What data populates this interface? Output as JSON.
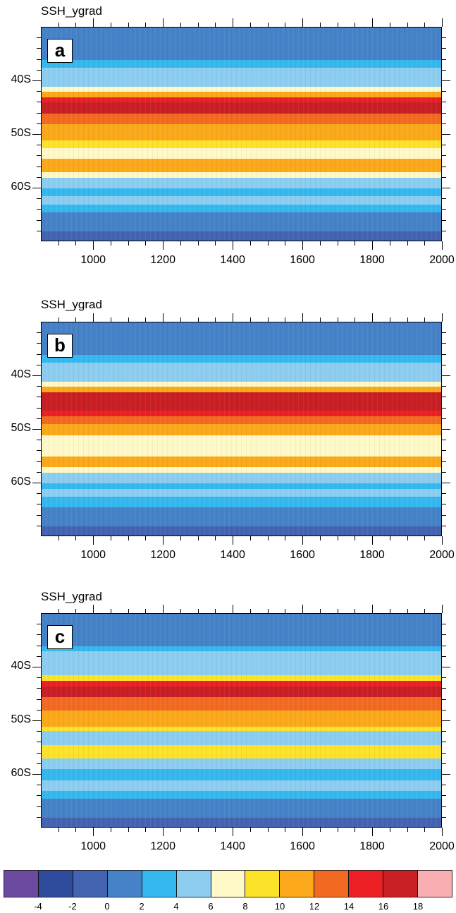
{
  "chart_data": [
    {
      "type": "heatmap",
      "panel_label": "a",
      "title": "SSH_ygrad",
      "xlabel": "",
      "ylabel": "",
      "xlim": [
        850,
        2000
      ],
      "ylim": [
        "30S",
        "70S"
      ],
      "x_ticks": [
        1000,
        1200,
        1400,
        1600,
        1800,
        2000
      ],
      "y_ticks": [
        "40S",
        "50S",
        "60S"
      ],
      "bands_by_latitude": [
        {
          "lat_from": 30,
          "lat_to": 36,
          "value": 0
        },
        {
          "lat_from": 36,
          "lat_to": 37.5,
          "value": 2
        },
        {
          "lat_from": 37.5,
          "lat_to": 41,
          "value": 4
        },
        {
          "lat_from": 41,
          "lat_to": 42,
          "value": 6
        },
        {
          "lat_from": 42,
          "lat_to": 43,
          "value": 10
        },
        {
          "lat_from": 43,
          "lat_to": 44,
          "value": 14
        },
        {
          "lat_from": 44,
          "lat_to": 46,
          "value": 16
        },
        {
          "lat_from": 46,
          "lat_to": 48,
          "value": 12
        },
        {
          "lat_from": 48,
          "lat_to": 51,
          "value": 10
        },
        {
          "lat_from": 51,
          "lat_to": 52.5,
          "value": 8
        },
        {
          "lat_from": 52.5,
          "lat_to": 54.5,
          "value": 6
        },
        {
          "lat_from": 54.5,
          "lat_to": 57,
          "value": 10
        },
        {
          "lat_from": 57,
          "lat_to": 58,
          "value": 6
        },
        {
          "lat_from": 58,
          "lat_to": 60,
          "value": 4
        },
        {
          "lat_from": 60,
          "lat_to": 61.5,
          "value": 2
        },
        {
          "lat_from": 61.5,
          "lat_to": 63,
          "value": 4
        },
        {
          "lat_from": 63,
          "lat_to": 64.5,
          "value": 2
        },
        {
          "lat_from": 64.5,
          "lat_to": 68,
          "value": 0
        },
        {
          "lat_from": 68,
          "lat_to": 70,
          "value": -2
        }
      ]
    },
    {
      "type": "heatmap",
      "panel_label": "b",
      "title": "SSH_ygrad",
      "xlabel": "",
      "ylabel": "",
      "xlim": [
        850,
        2000
      ],
      "ylim": [
        "30S",
        "70S"
      ],
      "x_ticks": [
        1000,
        1200,
        1400,
        1600,
        1800,
        2000
      ],
      "y_ticks": [
        "40S",
        "50S",
        "60S"
      ],
      "bands_by_latitude": [
        {
          "lat_from": 30,
          "lat_to": 36,
          "value": 0
        },
        {
          "lat_from": 36,
          "lat_to": 37.5,
          "value": 2
        },
        {
          "lat_from": 37.5,
          "lat_to": 41,
          "value": 4
        },
        {
          "lat_from": 41,
          "lat_to": 42,
          "value": 6
        },
        {
          "lat_from": 42,
          "lat_to": 43,
          "value": 10
        },
        {
          "lat_from": 43,
          "lat_to": 46.5,
          "value": 16
        },
        {
          "lat_from": 46.5,
          "lat_to": 47.5,
          "value": 14
        },
        {
          "lat_from": 47.5,
          "lat_to": 49,
          "value": 12
        },
        {
          "lat_from": 49,
          "lat_to": 51,
          "value": 10
        },
        {
          "lat_from": 51,
          "lat_to": 55,
          "value": 6
        },
        {
          "lat_from": 55,
          "lat_to": 57,
          "value": 10
        },
        {
          "lat_from": 57,
          "lat_to": 58,
          "value": 6
        },
        {
          "lat_from": 58,
          "lat_to": 60,
          "value": 4
        },
        {
          "lat_from": 60,
          "lat_to": 61,
          "value": 2
        },
        {
          "lat_from": 61,
          "lat_to": 62.5,
          "value": 4
        },
        {
          "lat_from": 62.5,
          "lat_to": 64.5,
          "value": 2
        },
        {
          "lat_from": 64.5,
          "lat_to": 68,
          "value": 0
        },
        {
          "lat_from": 68,
          "lat_to": 70,
          "value": -2
        }
      ]
    },
    {
      "type": "heatmap",
      "panel_label": "c",
      "title": "SSH_ygrad",
      "xlabel": "",
      "ylabel": "",
      "xlim": [
        850,
        2000
      ],
      "ylim": [
        "30S",
        "70S"
      ],
      "x_ticks": [
        1000,
        1200,
        1400,
        1600,
        1800,
        2000
      ],
      "y_ticks": [
        "40S",
        "50S",
        "60S"
      ],
      "bands_by_latitude": [
        {
          "lat_from": 30,
          "lat_to": 36,
          "value": 0
        },
        {
          "lat_from": 36,
          "lat_to": 37,
          "value": 2
        },
        {
          "lat_from": 37,
          "lat_to": 41.5,
          "value": 4
        },
        {
          "lat_from": 41.5,
          "lat_to": 42.5,
          "value": 8
        },
        {
          "lat_from": 42.5,
          "lat_to": 43.5,
          "value": 14
        },
        {
          "lat_from": 43.5,
          "lat_to": 45.5,
          "value": 16
        },
        {
          "lat_from": 45.5,
          "lat_to": 48,
          "value": 12
        },
        {
          "lat_from": 48,
          "lat_to": 51,
          "value": 10
        },
        {
          "lat_from": 51,
          "lat_to": 51.8,
          "value": 8
        },
        {
          "lat_from": 51.8,
          "lat_to": 54.5,
          "value": 4
        },
        {
          "lat_from": 54.5,
          "lat_to": 57,
          "value": 8
        },
        {
          "lat_from": 57,
          "lat_to": 59,
          "value": 4
        },
        {
          "lat_from": 59,
          "lat_to": 61,
          "value": 2
        },
        {
          "lat_from": 61,
          "lat_to": 63,
          "value": 4
        },
        {
          "lat_from": 63,
          "lat_to": 64.5,
          "value": 2
        },
        {
          "lat_from": 64.5,
          "lat_to": 68,
          "value": 0
        },
        {
          "lat_from": 68,
          "lat_to": 70,
          "value": -2
        }
      ]
    }
  ],
  "panels": [
    {
      "title": "SSH_ygrad",
      "label": "a"
    },
    {
      "title": "SSH_ygrad",
      "label": "b"
    },
    {
      "title": "SSH_ygrad",
      "label": "c"
    }
  ],
  "axes": {
    "y_labels": [
      "40S",
      "50S",
      "60S"
    ],
    "x_labels": [
      "1000",
      "1200",
      "1400",
      "1600",
      "1800",
      "2000"
    ]
  },
  "colorbar": {
    "colors": [
      "#6b4aa0",
      "#2f4b9e",
      "#4463b0",
      "#4682c8",
      "#35b8ee",
      "#8ccdf0",
      "#fff9c8",
      "#fde22a",
      "#fba91a",
      "#f26a22",
      "#ec2024",
      "#c81f25",
      "#f9aeb2"
    ],
    "labels": [
      "-4",
      "-2",
      "0",
      "2",
      "4",
      "6",
      "8",
      "10",
      "12",
      "14",
      "16",
      "18"
    ]
  }
}
